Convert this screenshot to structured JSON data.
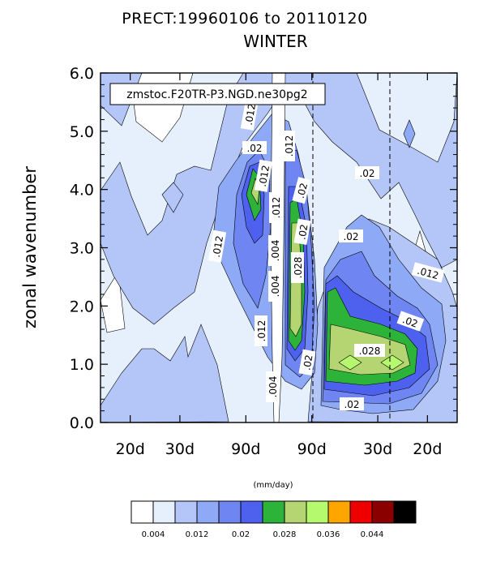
{
  "chart_data": {
    "type": "heatmap",
    "title": "PRECT:19960106 to 20110120",
    "subtitle": "WINTER",
    "annotation_box": "zmstoc.F20TR-P3.NGD.ne30pg2",
    "ylabel": "zonal wavenumber",
    "ylim": [
      0,
      6
    ],
    "y_ticks": [
      "0.0",
      "1.0",
      "2.0",
      "3.0",
      "4.0",
      "5.0",
      "6.0"
    ],
    "x_ticks": [
      "20d",
      "30d",
      "90d",
      "90d",
      "30d",
      "20d"
    ],
    "x_tick_frequency_cpd": [
      -0.05,
      -0.0333,
      -0.0111,
      0.0111,
      0.0333,
      0.05
    ],
    "xlim": [
      -0.06,
      0.06
    ],
    "dashed_lines_frequency_cpd": [
      0.0111,
      0.0333
    ],
    "colorbar_units": "(mm/day)",
    "colorbar_labels": [
      "0.004",
      "0.012",
      "0.02",
      "0.028",
      "0.036",
      "0.044"
    ],
    "colorbar_colors": [
      "#ffffff",
      "#e6f0fd",
      "#b4c6f8",
      "#8eaaf6",
      "#6f86f2",
      "#4e60ee",
      "#2eb33a",
      "#b4d572",
      "#b5fa6e",
      "#fea500",
      "#ee0000",
      "#8a0000",
      "#000000"
    ],
    "contour_labels": [
      ".012",
      ".02",
      ".012",
      ".02",
      ".012",
      ".012",
      ".02",
      ".02",
      ".004",
      ".028",
      ".004",
      ".012",
      ".004",
      ".02",
      ".012",
      ".02",
      ".012",
      ".02",
      ".028",
      ".02"
    ]
  }
}
